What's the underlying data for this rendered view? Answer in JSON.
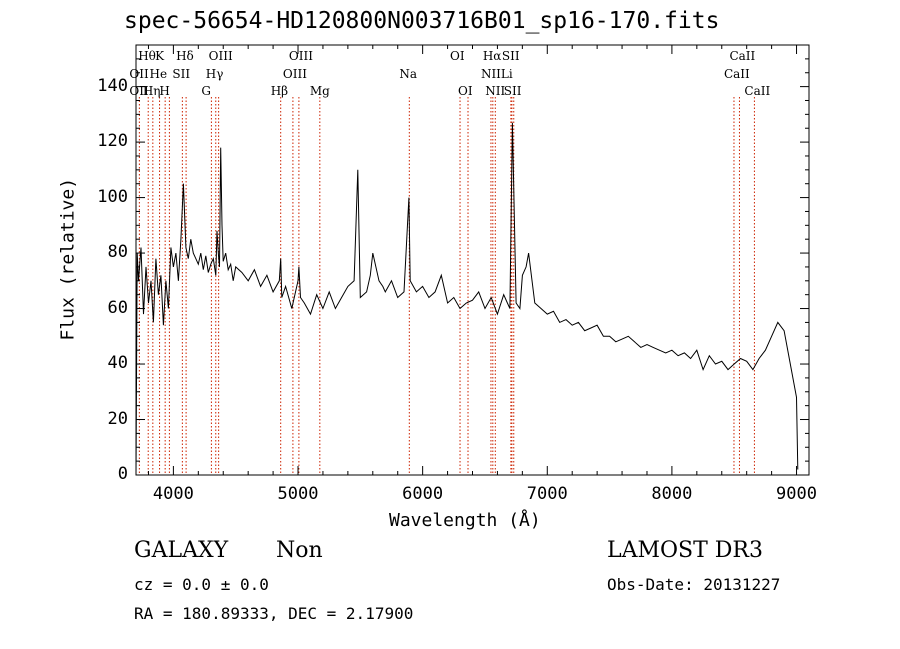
{
  "chart_data": {
    "type": "line",
    "title": "spec-56654-HD120800N003716B01_sp16-170.fits",
    "xlabel": "Wavelength (Å)",
    "ylabel": "Flux (relative)",
    "xlim": [
      3700,
      9100
    ],
    "ylim": [
      0,
      155
    ],
    "xticks": [
      4000,
      5000,
      6000,
      7000,
      8000,
      9000
    ],
    "yticks": [
      0,
      20,
      40,
      60,
      80,
      100,
      120,
      140
    ],
    "grid": false,
    "line_color": "#000000",
    "marker_color": "#cc2200",
    "series": [
      {
        "name": "",
        "x": [
          3700,
          3710,
          3720,
          3740,
          3760,
          3780,
          3800,
          3820,
          3840,
          3860,
          3880,
          3900,
          3920,
          3940,
          3960,
          3980,
          4000,
          4020,
          4040,
          4060,
          4080,
          4100,
          4120,
          4140,
          4160,
          4180,
          4200,
          4220,
          4240,
          4260,
          4280,
          4300,
          4320,
          4340,
          4350,
          4360,
          4370,
          4380,
          4390,
          4400,
          4420,
          4440,
          4460,
          4480,
          4500,
          4550,
          4600,
          4650,
          4700,
          4750,
          4800,
          4850,
          4861,
          4870,
          4900,
          4950,
          5000,
          5007,
          5020,
          5050,
          5100,
          5150,
          5200,
          5250,
          5300,
          5350,
          5400,
          5450,
          5480,
          5500,
          5550,
          5580,
          5600,
          5650,
          5680,
          5700,
          5750,
          5800,
          5850,
          5890,
          5900,
          5950,
          6000,
          6050,
          6100,
          6150,
          6200,
          6250,
          6300,
          6350,
          6400,
          6450,
          6500,
          6550,
          6600,
          6650,
          6680,
          6700,
          6720,
          6750,
          6780,
          6800,
          6830,
          6850,
          6900,
          6950,
          7000,
          7050,
          7100,
          7150,
          7200,
          7250,
          7300,
          7350,
          7400,
          7450,
          7500,
          7550,
          7600,
          7650,
          7700,
          7750,
          7800,
          7850,
          7900,
          7950,
          8000,
          8050,
          8100,
          8150,
          8200,
          8250,
          8300,
          8350,
          8400,
          8450,
          8500,
          8550,
          8600,
          8650,
          8700,
          8750,
          8800,
          8850,
          8900,
          8950,
          9000,
          9010
        ],
        "values": [
          0,
          80,
          70,
          82,
          58,
          75,
          62,
          70,
          55,
          78,
          65,
          72,
          54,
          70,
          60,
          82,
          75,
          80,
          70,
          85,
          105,
          82,
          78,
          85,
          80,
          78,
          76,
          80,
          74,
          79,
          73,
          76,
          78,
          72,
          88,
          80,
          75,
          118,
          90,
          77,
          80,
          74,
          76,
          70,
          75,
          73,
          70,
          74,
          68,
          72,
          66,
          70,
          78,
          64,
          68,
          60,
          70,
          75,
          64,
          62,
          58,
          65,
          60,
          66,
          60,
          64,
          68,
          70,
          110,
          64,
          66,
          72,
          80,
          70,
          68,
          66,
          70,
          64,
          66,
          100,
          70,
          66,
          68,
          64,
          66,
          72,
          62,
          64,
          60,
          62,
          63,
          66,
          60,
          64,
          58,
          65,
          62,
          60,
          127,
          62,
          60,
          72,
          75,
          80,
          62,
          60,
          58,
          59,
          55,
          56,
          54,
          55,
          52,
          53,
          54,
          50,
          50,
          48,
          49,
          50,
          48,
          46,
          47,
          46,
          45,
          44,
          45,
          43,
          44,
          42,
          45,
          38,
          43,
          40,
          41,
          38,
          40,
          42,
          41,
          38,
          42,
          45,
          50,
          55,
          52,
          40,
          28,
          2
        ]
      }
    ],
    "lines_top": [
      {
        "label": "Hθ",
        "x": 3798
      },
      {
        "label": "K",
        "x": 3934
      },
      {
        "label": "Hδ",
        "x": 4102
      },
      {
        "label": "OIII",
        "x": 4363
      },
      {
        "label": "OIII",
        "x": 5007
      },
      {
        "label": "OI",
        "x": 6300
      },
      {
        "label": "Hα",
        "x": 6563
      },
      {
        "label": "SII",
        "x": 6716
      },
      {
        "label": "CaII",
        "x": 8542
      }
    ],
    "lines_mid": [
      {
        "label": "OII",
        "x": 3727
      },
      {
        "label": "He",
        "x": 3889
      },
      {
        "label": "SII",
        "x": 4072
      },
      {
        "label": "Hγ",
        "x": 4340
      },
      {
        "label": "OIII",
        "x": 4959
      },
      {
        "label": "Na",
        "x": 5893
      },
      {
        "label": "NII",
        "x": 6548
      },
      {
        "label": "Li",
        "x": 6708
      },
      {
        "label": "CaII",
        "x": 8498
      }
    ],
    "lines_low": [
      {
        "label": "OII",
        "x": 3727
      },
      {
        "label": "Hη",
        "x": 3835
      },
      {
        "label": "H",
        "x": 3968
      },
      {
        "label": "G",
        "x": 4305
      },
      {
        "label": "Hβ",
        "x": 4861
      },
      {
        "label": "Mg",
        "x": 5175
      },
      {
        "label": "OI",
        "x": 6364
      },
      {
        "label": "NII",
        "x": 6583
      },
      {
        "label": "SII",
        "x": 6731
      },
      {
        "label": "CaII",
        "x": 8662
      }
    ],
    "marker_x": [
      3727,
      3798,
      3835,
      3889,
      3934,
      3968,
      4072,
      4102,
      4305,
      4340,
      4363,
      4861,
      4959,
      5007,
      5175,
      5893,
      6300,
      6364,
      6548,
      6563,
      6583,
      6708,
      6716,
      6731,
      8498,
      8542,
      8662
    ]
  },
  "info": {
    "class": "GALAXY",
    "subclass": "Non",
    "survey": "LAMOST DR3",
    "cz": "cz = 0.0 ± 0.0",
    "obs_date": "Obs-Date: 20131227",
    "radec": "RA = 180.89333, DEC =    2.17900"
  }
}
